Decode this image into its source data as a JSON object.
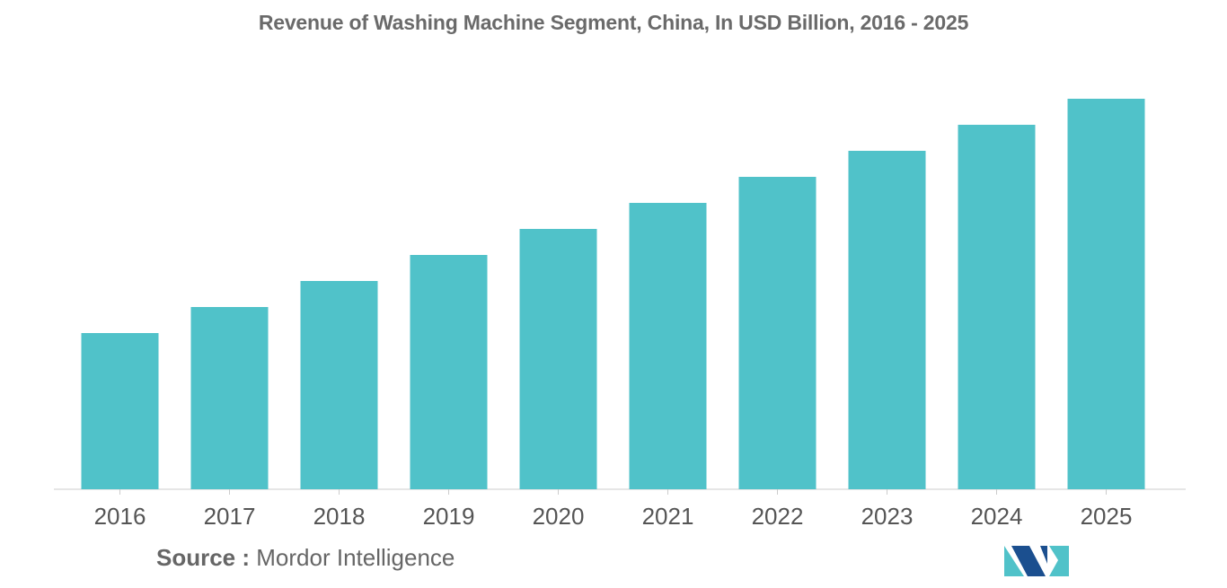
{
  "chart_data": {
    "type": "bar",
    "title": "Revenue of Washing Machine Segment, China, In USD Billion, 2016 - 2025",
    "categories": [
      "2016",
      "2017",
      "2018",
      "2019",
      "2020",
      "2021",
      "2022",
      "2023",
      "2024",
      "2025"
    ],
    "values": [
      6.0,
      7.0,
      8.0,
      9.0,
      10.0,
      11.0,
      12.0,
      13.0,
      14.0,
      15.0
    ],
    "xlabel": "",
    "ylabel": "",
    "ylim": [
      0,
      15.0
    ],
    "grid": false,
    "legend": "none",
    "bar_color": "#50C2C9",
    "axis_color": "#cccccc"
  },
  "source": {
    "label": "Source :",
    "text": "Mordor Intelligence"
  },
  "logo": {
    "name": "mordor-intelligence-logo",
    "colors": [
      "#1B4F8F",
      "#50C2C9"
    ]
  }
}
